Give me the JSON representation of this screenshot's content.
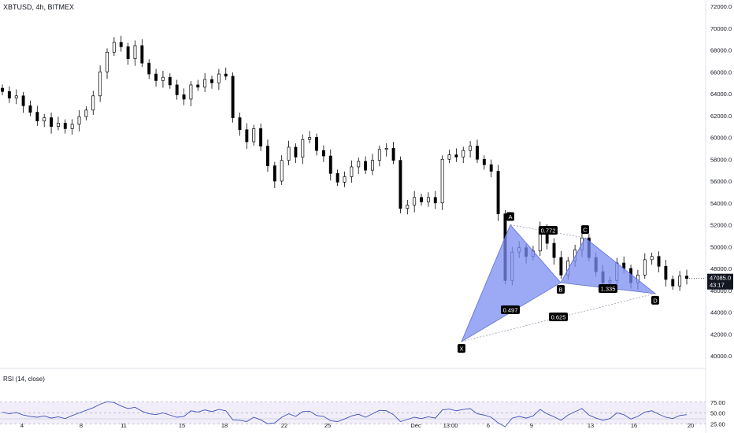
{
  "header": {
    "title": "XBTUSD, 4h, BITMEX"
  },
  "rsi": {
    "label": "RSI (14, close)",
    "levels": [
      "75.00",
      "50.00",
      "25.00"
    ],
    "band_color": "#7e57c2",
    "line_color": "#3f51b5"
  },
  "price_badge": {
    "price": "47085.0",
    "countdown": "43:17",
    "color": "#131722"
  },
  "colors": {
    "pattern_fill": "#7b8cf0",
    "candle": "#000000",
    "label_bg": "#000000"
  },
  "chart_data": {
    "type": "candlestick",
    "title": "",
    "xlabel": "",
    "ylabel": "",
    "ylim": [
      40000,
      72000
    ],
    "y_ticks": [
      "72000.0",
      "70000.0",
      "68000.0",
      "66000.0",
      "64000.0",
      "62000.0",
      "60000.0",
      "58000.0",
      "56000.0",
      "54000.0",
      "52000.0",
      "50000.0",
      "48000.0",
      "46000.0",
      "44000.0",
      "42000.0",
      "40000.0"
    ],
    "x_ticks": [
      "4",
      "8",
      "11",
      "15",
      "18",
      "22",
      "25",
      "Dec",
      "13:00",
      "6",
      "9",
      "13",
      "16",
      "20"
    ],
    "closes": [
      64200,
      63600,
      63800,
      62900,
      62300,
      61500,
      61800,
      61000,
      61300,
      60800,
      61200,
      61900,
      62500,
      63800,
      66000,
      67800,
      68700,
      68300,
      67200,
      68400,
      66800,
      65800,
      65200,
      65500,
      64800,
      63900,
      63500,
      64800,
      64600,
      65300,
      65000,
      65800,
      65600,
      61800,
      60700,
      59600,
      60800,
      59200,
      57400,
      56000,
      57900,
      59100,
      58200,
      59800,
      60000,
      58800,
      58300,
      56700,
      55900,
      56400,
      57300,
      57800,
      57000,
      57900,
      58900,
      59000,
      57900,
      53500,
      53800,
      54500,
      54100,
      54500,
      54000,
      58000,
      58400,
      58200,
      58800,
      59200,
      58000,
      57500,
      56900,
      53000,
      46900,
      49500,
      49900,
      49100,
      49600,
      51700,
      50300,
      49000,
      47400,
      48700,
      49700,
      50800,
      49000,
      47700,
      46700,
      46900,
      48500,
      48000,
      46700,
      47400,
      48800,
      49100,
      48200,
      47000,
      46400,
      47300,
      47085
    ],
    "pattern": {
      "type": "harmonic-xabcd",
      "points": [
        {
          "label": "X",
          "price": 41300
        },
        {
          "label": "A",
          "price": 52000
        },
        {
          "label": "B",
          "price": 46700
        },
        {
          "label": "C",
          "price": 50800
        },
        {
          "label": "D",
          "price": 45700
        }
      ],
      "ratios": [
        "0.772",
        "0.497",
        "1.335",
        "0.625"
      ]
    },
    "rsi_values": [
      52,
      48,
      51,
      45,
      42,
      40,
      43,
      38,
      41,
      37,
      44,
      50,
      56,
      62,
      70,
      76,
      74,
      66,
      60,
      63,
      54,
      48,
      46,
      50,
      45,
      40,
      42,
      55,
      52,
      57,
      53,
      58,
      55,
      34,
      33,
      30,
      40,
      34,
      25,
      27,
      40,
      48,
      42,
      53,
      54,
      44,
      42,
      32,
      30,
      36,
      43,
      47,
      40,
      48,
      56,
      55,
      46,
      30,
      35,
      40,
      37,
      41,
      38,
      57,
      59,
      55,
      58,
      60,
      48,
      45,
      40,
      27,
      18,
      38,
      42,
      38,
      43,
      58,
      48,
      41,
      33,
      45,
      53,
      60,
      45,
      38,
      33,
      37,
      50,
      46,
      36,
      42,
      52,
      55,
      47,
      40,
      37,
      44,
      46
    ],
    "rsi_ylim": [
      0,
      100
    ]
  }
}
